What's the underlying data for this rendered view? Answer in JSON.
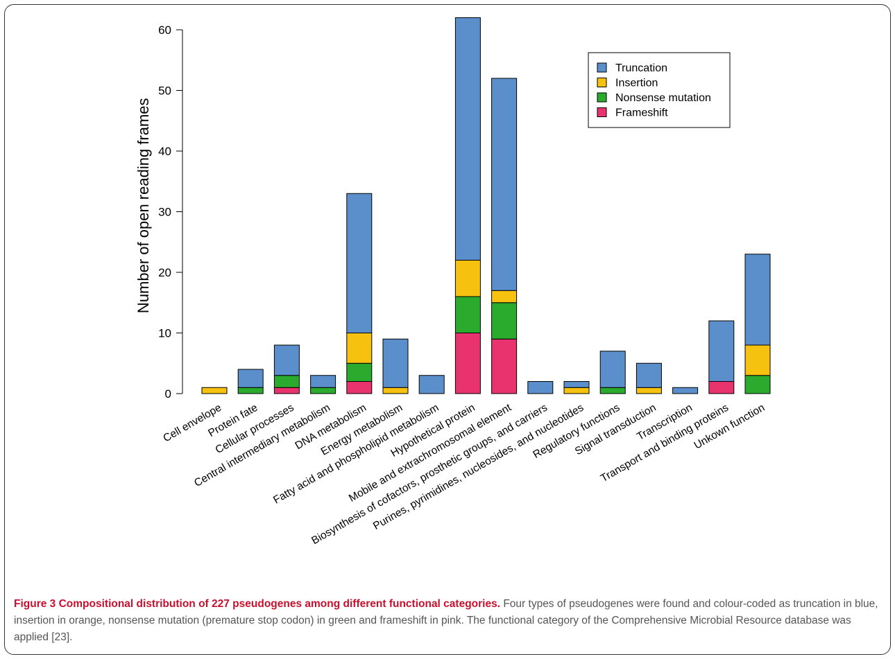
{
  "chart_data": {
    "type": "bar",
    "stacked": true,
    "ylabel": "Number of open reading frames",
    "xlabel": "",
    "ylim": [
      0,
      62
    ],
    "yticks": [
      0,
      10,
      20,
      30,
      40,
      50,
      60
    ],
    "grid": false,
    "legend_position": "top-right",
    "categories": [
      "Cell envelope",
      "Protein fate",
      "Cellular processes",
      "Central intermediary metabolism",
      "DNA metabolism",
      "Energy metabolism",
      "Fatty acid and phospholipid metabolism",
      "Hypothetical protein",
      "Mobile and extrachromosomal element",
      "Biosynthesis of cofactors, prosthetic groups, and carriers",
      "Purines, pyrimidines, nucleosides, and nucleotides",
      "Regulatory functions",
      "Signal transduction",
      "Transcription",
      "Transport and binding proteins",
      "Unkown function"
    ],
    "series": [
      {
        "name": "Frameshift",
        "color": "#e8336e",
        "values": [
          0,
          0,
          1,
          0,
          2,
          0,
          0,
          10,
          9,
          0,
          0,
          0,
          0,
          0,
          2,
          0
        ]
      },
      {
        "name": "Nonsense mutation",
        "color": "#2aab2e",
        "values": [
          0,
          1,
          2,
          1,
          3,
          0,
          0,
          6,
          6,
          0,
          0,
          1,
          0,
          0,
          0,
          3
        ]
      },
      {
        "name": "Insertion",
        "color": "#f7c10f",
        "values": [
          1,
          0,
          0,
          0,
          5,
          1,
          0,
          6,
          2,
          0,
          1,
          0,
          1,
          0,
          0,
          5
        ]
      },
      {
        "name": "Truncation",
        "color": "#5b8fcb",
        "values": [
          0,
          3,
          5,
          2,
          23,
          8,
          3,
          40,
          35,
          2,
          1,
          6,
          4,
          1,
          10,
          15
        ]
      }
    ],
    "legend_order": [
      "Truncation",
      "Insertion",
      "Nonsense mutation",
      "Frameshift"
    ]
  },
  "caption": {
    "title": "Figure 3 Compositional distribution of 227 pseudogenes among different functional categories.",
    "text": " Four types of pseudogenes were found and colour-coded as truncation in blue, insertion in orange, nonsense mutation (premature stop codon) in green and frameshift in pink. The functional category of the Comprehensive Microbial Resource database was applied [23]."
  }
}
